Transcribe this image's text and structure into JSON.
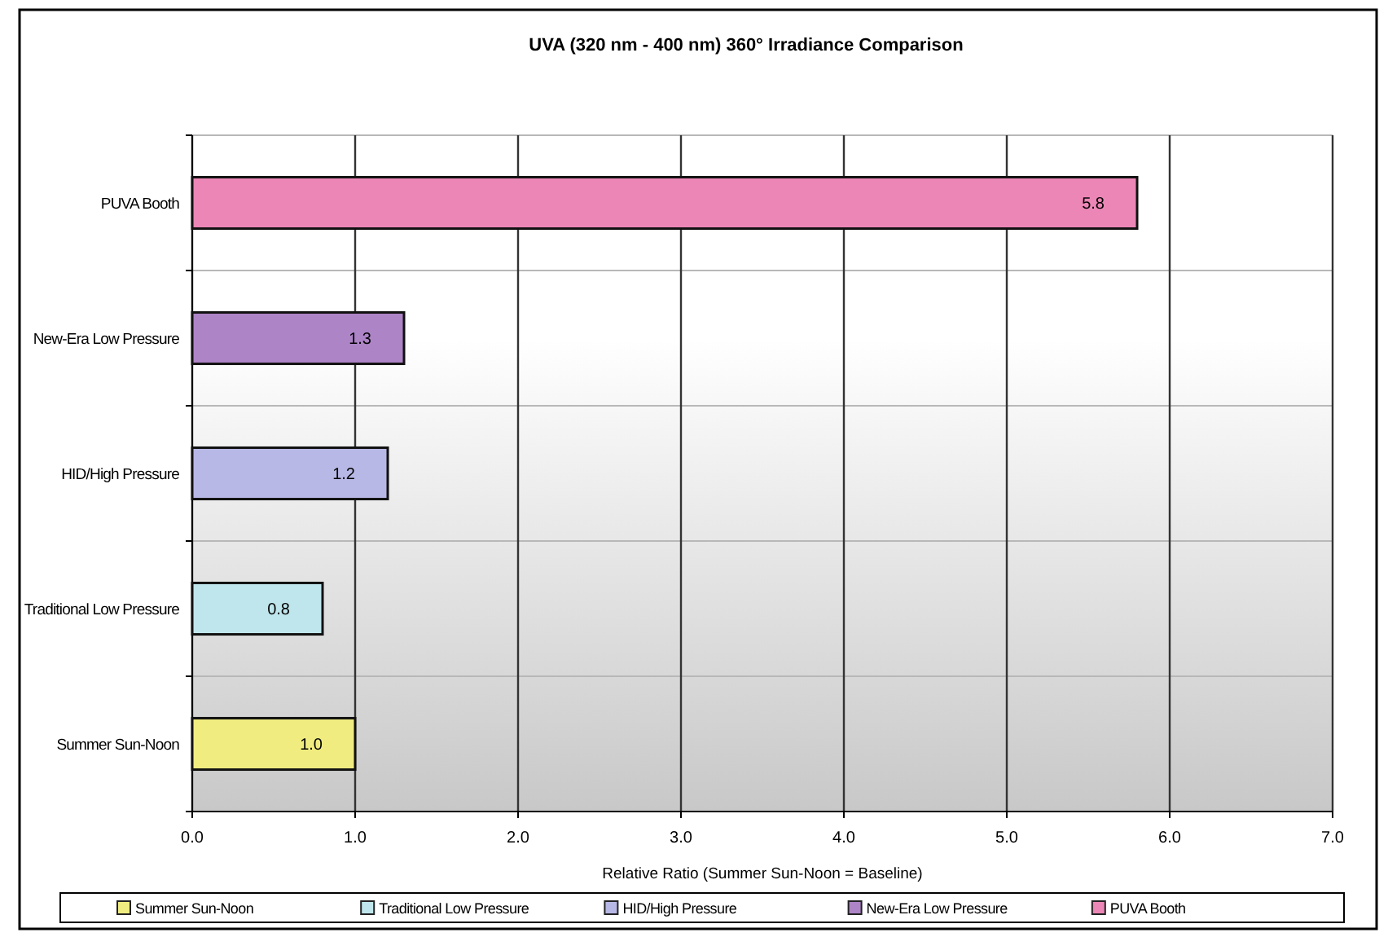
{
  "chart_data": {
    "type": "bar",
    "orientation": "horizontal",
    "title": "UVA (320 nm - 400 nm) 360° Irradiance Comparison",
    "xlabel": "Relative Ratio (Summer Sun-Noon = Baseline)",
    "categories": [
      "PUVA Booth",
      "New-Era Low Pressure",
      "HID/High Pressure",
      "Traditional Low Pressure",
      "Summer Sun-Noon"
    ],
    "series": [
      {
        "name": "Summer Sun-Noon",
        "color": "#f0ec80",
        "values": [
          null,
          null,
          null,
          null,
          1.0
        ],
        "value_labels": [
          null,
          null,
          null,
          null,
          "1.0"
        ]
      },
      {
        "name": "Traditional Low Pressure",
        "color": "#bfe6ec",
        "values": [
          null,
          null,
          null,
          0.8,
          null
        ],
        "value_labels": [
          null,
          null,
          null,
          "0.8",
          null
        ]
      },
      {
        "name": "HID/High Pressure",
        "color": "#b8b8e6",
        "values": [
          null,
          null,
          1.2,
          null,
          null
        ],
        "value_labels": [
          null,
          null,
          "1.2",
          null,
          null
        ]
      },
      {
        "name": "New-Era Low Pressure",
        "color": "#ad84c6",
        "values": [
          null,
          1.3,
          null,
          null,
          null
        ],
        "value_labels": [
          null,
          "1.3",
          null,
          null,
          null
        ]
      },
      {
        "name": "PUVA Booth",
        "color": "#ec86b6",
        "values": [
          5.8,
          null,
          null,
          null,
          null
        ],
        "value_labels": [
          "5.8",
          null,
          null,
          null,
          null
        ]
      }
    ],
    "xlim": [
      0,
      7
    ],
    "xticks": [
      {
        "value": 0,
        "label": "0.0"
      },
      {
        "value": 1,
        "label": "1.0"
      },
      {
        "value": 2,
        "label": "2.0"
      },
      {
        "value": 3,
        "label": "3.0"
      },
      {
        "value": 4,
        "label": "4.0"
      },
      {
        "value": 5,
        "label": "5.0"
      },
      {
        "value": 6,
        "label": "6.0"
      },
      {
        "value": 7,
        "label": "7.0"
      }
    ],
    "grid": true,
    "legend": "bottom"
  }
}
